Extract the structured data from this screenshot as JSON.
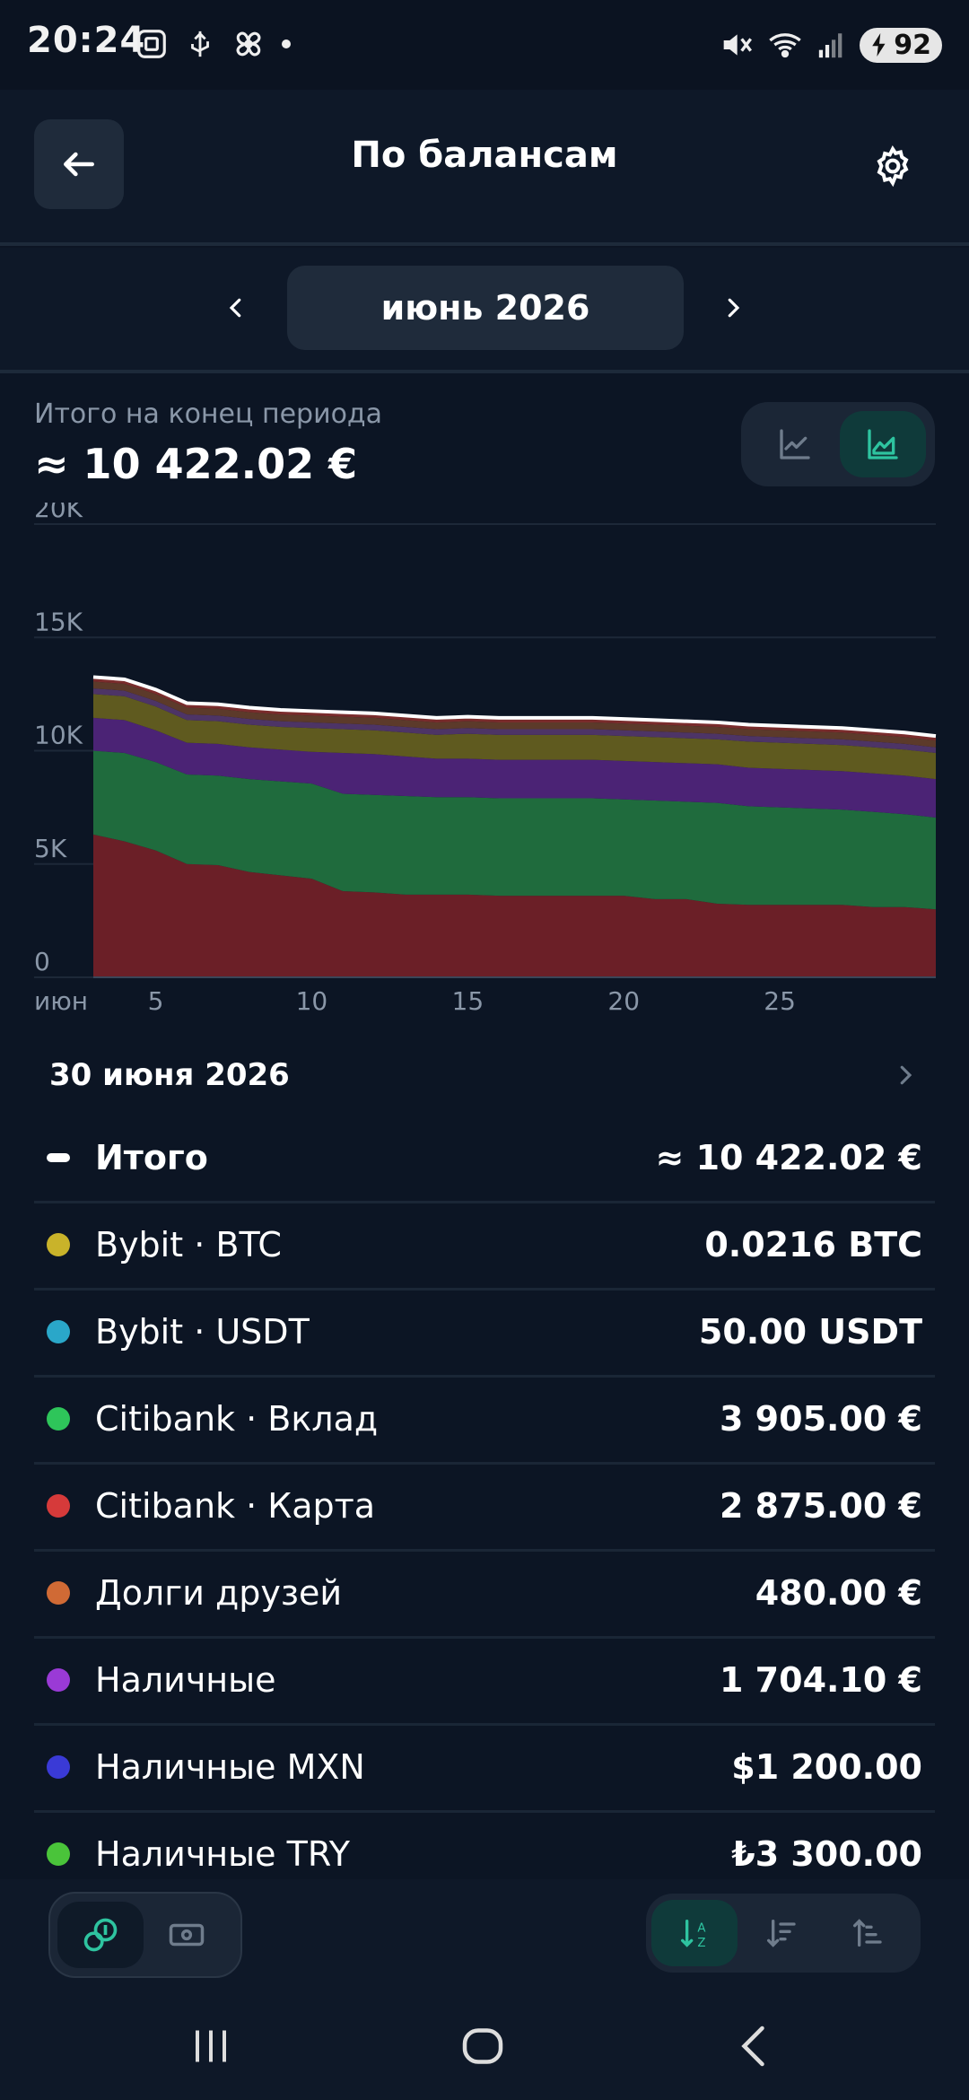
{
  "status": {
    "time": "20:24",
    "battery": "92",
    "wifi_sup": "6"
  },
  "header": {
    "title": "По балансам"
  },
  "period": {
    "label": "июнь 2026"
  },
  "summary": {
    "label": "Итого на конец периода",
    "value": "≈ 10 422.02 €"
  },
  "chart_data": {
    "type": "area",
    "stacked": true,
    "x": [
      3,
      4,
      5,
      6,
      7,
      8,
      9,
      10,
      11,
      12,
      13,
      14,
      15,
      16,
      17,
      18,
      19,
      20,
      21,
      22,
      23,
      24,
      25,
      26,
      27,
      28,
      29,
      30
    ],
    "x_ticks": [
      "июн",
      "5",
      "10",
      "15",
      "20",
      "25"
    ],
    "y_ticks": [
      "0",
      "5K",
      "10K",
      "15K",
      "20K"
    ],
    "ylim": [
      0,
      20000
    ],
    "grid": true,
    "series": [
      {
        "color": "#6b1f27",
        "values": [
          6300,
          6000,
          5600,
          5000,
          4950,
          4650,
          4500,
          4350,
          3800,
          3750,
          3650,
          3650,
          3650,
          3600,
          3600,
          3600,
          3600,
          3600,
          3450,
          3450,
          3250,
          3200,
          3200,
          3200,
          3200,
          3100,
          3100,
          3000
        ]
      },
      {
        "color": "#1f6b3d",
        "values": [
          3700,
          3900,
          3900,
          3950,
          3950,
          4100,
          4150,
          4200,
          4300,
          4300,
          4350,
          4300,
          4300,
          4300,
          4300,
          4300,
          4300,
          4250,
          4350,
          4300,
          4450,
          4350,
          4300,
          4250,
          4200,
          4200,
          4100,
          4050
        ]
      },
      {
        "color": "#4b2375",
        "values": [
          1450,
          1450,
          1400,
          1400,
          1400,
          1400,
          1400,
          1400,
          1800,
          1800,
          1750,
          1700,
          1700,
          1700,
          1700,
          1700,
          1700,
          1700,
          1700,
          1700,
          1700,
          1700,
          1700,
          1700,
          1700,
          1700,
          1700,
          1700
        ]
      },
      {
        "color": "#5f5a1f",
        "values": [
          1050,
          1050,
          1050,
          1000,
          1000,
          1000,
          1000,
          1050,
          1050,
          1050,
          1050,
          1050,
          1100,
          1100,
          1100,
          1100,
          1100,
          1100,
          1100,
          1100,
          1100,
          1150,
          1150,
          1150,
          1150,
          1150,
          1150,
          1150
        ]
      },
      {
        "color": "#4d3466",
        "values": [
          250,
          250,
          250,
          250,
          250,
          250,
          250,
          250,
          250,
          250,
          250,
          250,
          250,
          250,
          250,
          250,
          250,
          250,
          250,
          250,
          250,
          250,
          250,
          250,
          250,
          250,
          250,
          250
        ]
      },
      {
        "color": "#5c3a2a",
        "values": [
          300,
          300,
          300,
          300,
          300,
          300,
          300,
          300,
          300,
          300,
          300,
          300,
          300,
          300,
          300,
          300,
          300,
          300,
          300,
          300,
          300,
          300,
          300,
          300,
          300,
          300,
          300,
          300
        ]
      },
      {
        "color": "#7a2c2c",
        "values": [
          200,
          200,
          200,
          200,
          200,
          200,
          200,
          200,
          200,
          200,
          200,
          200,
          200,
          200,
          200,
          200,
          200,
          200,
          200,
          200,
          200,
          200,
          200,
          200,
          200,
          200,
          200,
          200
        ]
      }
    ],
    "total_color": "#ffffff"
  },
  "list": {
    "date": "30 июня 2026",
    "total": {
      "label": "Итого",
      "value": "≈ 10 422.02 €"
    },
    "items": [
      {
        "label": "Bybit · BTC",
        "value": "0.0216 BTC",
        "color": "#c9b32a"
      },
      {
        "label": "Bybit · USDT",
        "value": "50.00 USDT",
        "color": "#2aa7c9"
      },
      {
        "label": "Citibank · Вклад",
        "value": "3 905.00 €",
        "color": "#2ec55a"
      },
      {
        "label": "Citibank · Карта",
        "value": "2 875.00 €",
        "color": "#d63a3a"
      },
      {
        "label": "Долги друзей",
        "value": "480.00 €",
        "color": "#d06a35"
      },
      {
        "label": "Наличные",
        "value": "1 704.10 €",
        "color": "#9a3ad6"
      },
      {
        "label": "Наличные MXN",
        "value": "$1 200.00",
        "color": "#3a3ad6"
      },
      {
        "label": "Наличные TRY",
        "value": "₺3 300.00",
        "color": "#4ac43a"
      }
    ]
  },
  "colors": {
    "accent": "#2ec4a0",
    "background": "#0c1524",
    "surface": "#1f2b3b"
  }
}
